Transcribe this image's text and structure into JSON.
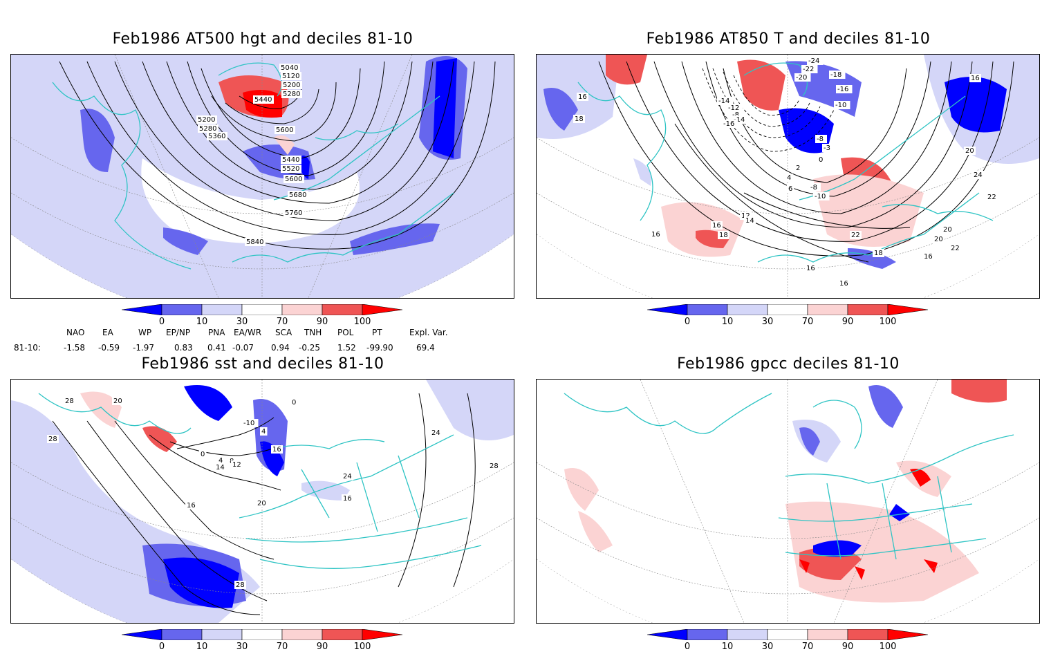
{
  "panels": [
    {
      "id": "hgt",
      "title": "Feb1986 AT500 hgt and deciles 81-10",
      "contour_labels": [
        "5040",
        "5120",
        "5200",
        "5280",
        "5440",
        "5200",
        "5280",
        "5360",
        "5600",
        "5440",
        "5520",
        "5600",
        "5680",
        "5760",
        "5840"
      ]
    },
    {
      "id": "t850",
      "title": "Feb1986 AT850 T and deciles 81-10",
      "contour_labels": [
        "-24",
        "-22",
        "-18",
        "-20",
        "-16",
        "-14",
        "-12",
        "-10",
        "-8",
        "-14",
        "-16",
        "-8",
        "-3",
        "0",
        "2",
        "4",
        "6",
        "-8",
        "-10",
        "16",
        "18",
        "16",
        "20",
        "24",
        "22",
        "20",
        "12",
        "14",
        "16",
        "18",
        "22",
        "22",
        "20",
        "18",
        "16",
        "16",
        "16",
        "16"
      ]
    },
    {
      "id": "sst",
      "title": "Feb1986 sst and deciles 81-10",
      "contour_labels": [
        "28",
        "20",
        "28",
        "0",
        "4",
        "0",
        "-10",
        "4",
        "8",
        "12",
        "14",
        "16",
        "20",
        "16",
        "16",
        "24",
        "24",
        "28",
        "28"
      ]
    },
    {
      "id": "gpcc",
      "title": "Feb1986 gpcc deciles 81-10",
      "contour_labels": []
    }
  ],
  "colorbar": {
    "ticks": [
      "0",
      "10",
      "30",
      "70",
      "90",
      "100"
    ],
    "colors": {
      "deep_blue": "#0000ff",
      "mid_blue": "#6666ee",
      "light_blue": "#d4d6f8",
      "white": "#ffffff",
      "light_red": "#fbd3d3",
      "mid_red": "#ef5555",
      "deep_red": "#ff0000"
    }
  },
  "indices": {
    "headers": [
      "NAO",
      "EA",
      "WP",
      "EP/NP",
      "PNA",
      "EA/WR",
      "SCA",
      "TNH",
      "POL",
      "PT",
      "Expl. Var."
    ],
    "row_label": "81-10:",
    "values": [
      "-1.58",
      "-0.59",
      "-1.97",
      "0.83",
      "0.41",
      "-0.07",
      "0.94",
      "-0.25",
      "1.52",
      "-99.90",
      "69.4"
    ]
  },
  "map_colors": {
    "coastline": "#2ec4c4",
    "contour": "#000000",
    "grid": "#888888"
  }
}
